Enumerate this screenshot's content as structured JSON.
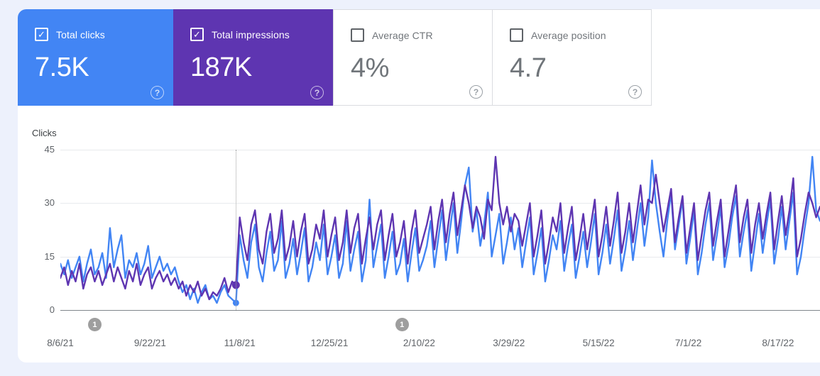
{
  "page": {
    "background": "#edf1fc",
    "panel_background": "#ffffff"
  },
  "metric_cards": [
    {
      "label": "Total clicks",
      "value": "7.5K",
      "checked": true,
      "background": "#4285f4",
      "text_color": "#ffffff"
    },
    {
      "label": "Total impressions",
      "value": "187K",
      "checked": true,
      "background": "#5e35b1",
      "text_color": "#ffffff"
    },
    {
      "label": "Average CTR",
      "value": "4%",
      "checked": false,
      "background": "#ffffff",
      "text_color": "#70757a"
    },
    {
      "label": "Average position",
      "value": "4.7",
      "checked": false,
      "background": "#ffffff",
      "text_color": "#70757a"
    }
  ],
  "icons": {
    "help_glyph": "?",
    "check_glyph": "✓"
  },
  "chart_data": {
    "type": "line",
    "ylabel": "Clicks",
    "yticks": [
      45,
      30,
      15,
      0
    ],
    "ylim": [
      0,
      45
    ],
    "grid": "horizontal",
    "x_start_date": "8/6/21",
    "sample_step_days": 2,
    "x_tick_labels": [
      "8/6/21",
      "9/22/21",
      "11/8/21",
      "12/25/21",
      "2/10/22",
      "3/29/22",
      "5/15/22",
      "7/1/22",
      "8/17/22"
    ],
    "x_tick_interval_days": 47,
    "event_marker": {
      "sample_index": 46,
      "style": "dotted-vertical-line"
    },
    "annotations": [
      {
        "label": "1",
        "day": 18
      },
      {
        "label": "1",
        "day": 179
      }
    ],
    "series": [
      {
        "name": "Total clicks",
        "color": "#4285f4",
        "values": [
          13,
          10,
          14,
          9,
          12,
          15,
          8,
          13,
          17,
          10,
          12,
          16,
          9,
          23,
          12,
          17,
          21,
          9,
          14,
          12,
          16,
          10,
          13,
          18,
          9,
          12,
          15,
          11,
          13,
          10,
          12,
          8,
          5,
          7,
          3,
          6,
          2,
          5,
          7,
          3,
          4,
          2,
          5,
          7,
          4,
          3,
          2,
          21,
          14,
          9,
          19,
          24,
          12,
          8,
          16,
          22,
          11,
          14,
          25,
          9,
          13,
          20,
          10,
          16,
          23,
          8,
          12,
          19,
          14,
          24,
          10,
          15,
          21,
          9,
          13,
          25,
          11,
          17,
          22,
          8,
          14,
          31,
          12,
          18,
          24,
          9,
          15,
          22,
          10,
          13,
          20,
          8,
          16,
          23,
          11,
          14,
          18,
          25,
          12,
          20,
          28,
          14,
          22,
          30,
          16,
          25,
          35,
          40,
          22,
          28,
          18,
          24,
          33,
          15,
          21,
          27,
          13,
          19,
          26,
          17,
          23,
          12,
          19,
          26,
          10,
          16,
          23,
          8,
          14,
          21,
          17,
          25,
          11,
          18,
          24,
          9,
          15,
          22,
          12,
          19,
          27,
          10,
          16,
          24,
          13,
          20,
          28,
          11,
          17,
          25,
          14,
          22,
          30,
          18,
          26,
          42,
          30,
          22,
          15,
          25,
          33,
          17,
          24,
          31,
          13,
          20,
          28,
          10,
          16,
          24,
          30,
          14,
          21,
          29,
          12,
          18,
          26,
          32,
          15,
          22,
          28,
          11,
          19,
          27,
          16,
          24,
          31,
          13,
          20,
          29,
          17,
          25,
          33,
          10,
          15,
          23,
          30,
          43,
          28,
          25
        ]
      },
      {
        "name": "Total impressions (scaled to clicks axis)",
        "color": "#5e35b1",
        "values": [
          9,
          12,
          7,
          11,
          8,
          13,
          6,
          10,
          12,
          8,
          11,
          7,
          10,
          13,
          8,
          12,
          9,
          6,
          11,
          8,
          13,
          7,
          10,
          12,
          6,
          9,
          11,
          8,
          10,
          7,
          9,
          6,
          8,
          4,
          7,
          5,
          8,
          4,
          6,
          3,
          5,
          4,
          6,
          9,
          5,
          8,
          7,
          26,
          19,
          14,
          24,
          28,
          17,
          13,
          22,
          27,
          16,
          20,
          28,
          14,
          18,
          25,
          15,
          22,
          27,
          13,
          17,
          24,
          20,
          28,
          15,
          21,
          26,
          14,
          19,
          28,
          16,
          23,
          27,
          13,
          20,
          26,
          17,
          24,
          28,
          14,
          21,
          27,
          15,
          19,
          25,
          13,
          22,
          28,
          16,
          20,
          24,
          29,
          17,
          25,
          31,
          19,
          27,
          33,
          21,
          28,
          35,
          30,
          23,
          29,
          26,
          20,
          31,
          28,
          43,
          30,
          24,
          29,
          22,
          27,
          25,
          18,
          24,
          30,
          15,
          21,
          28,
          13,
          19,
          26,
          22,
          30,
          16,
          23,
          29,
          14,
          20,
          27,
          17,
          24,
          31,
          15,
          21,
          29,
          18,
          25,
          33,
          16,
          22,
          30,
          19,
          27,
          35,
          24,
          31,
          30,
          38,
          30,
          22,
          28,
          34,
          19,
          26,
          32,
          16,
          23,
          30,
          14,
          21,
          28,
          33,
          18,
          25,
          31,
          15,
          22,
          29,
          35,
          19,
          26,
          31,
          16,
          24,
          30,
          20,
          27,
          33,
          17,
          25,
          32,
          21,
          28,
          37,
          15,
          20,
          27,
          33,
          30,
          26,
          29
        ]
      }
    ]
  }
}
